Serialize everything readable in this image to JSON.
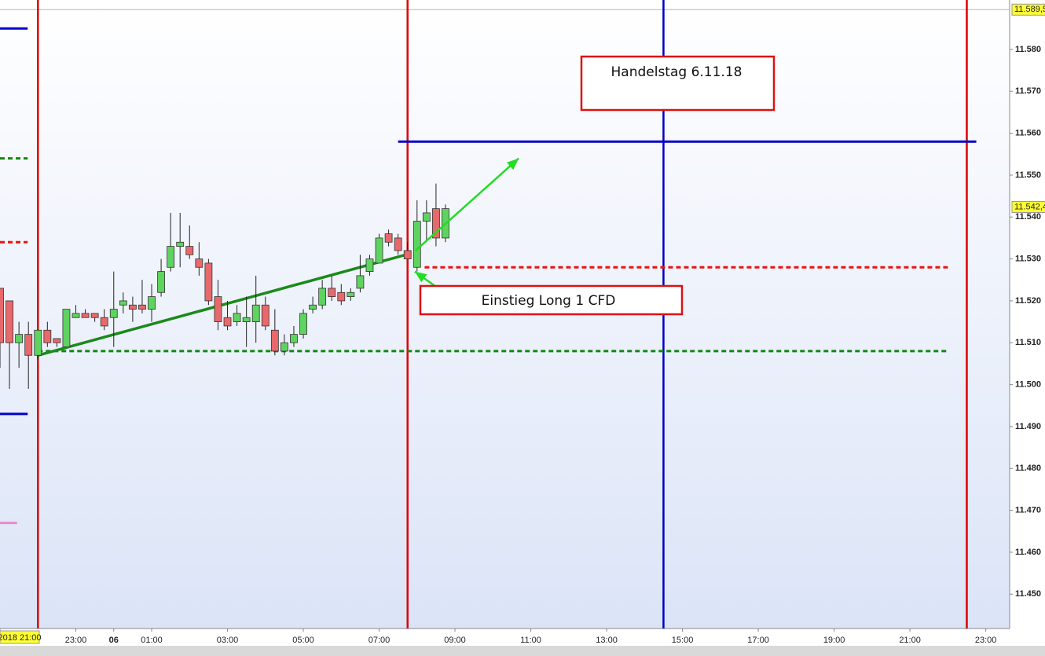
{
  "chart_data": {
    "type": "candlestick",
    "x": [
      0,
      0.25,
      0.5,
      0.75,
      1,
      1.25,
      1.5,
      1.75,
      2,
      2.25,
      2.5,
      2.75,
      3,
      3.25,
      3.5,
      3.75,
      4,
      4.25,
      4.5,
      4.75,
      5,
      5.25,
      5.5,
      5.75,
      6,
      6.25,
      6.5,
      6.75,
      7,
      7.25,
      7.5,
      7.75,
      8,
      8.25,
      8.5,
      8.75,
      9,
      9.25,
      9.5,
      9.75,
      10,
      10.25,
      10.5,
      10.75,
      11,
      11.25,
      11.5,
      11.75
    ],
    "open": [
      11.523,
      11.52,
      11.51,
      11.512,
      11.507,
      11.513,
      11.511,
      11.509,
      11.516,
      11.517,
      11.517,
      11.516,
      11.516,
      11.519,
      11.519,
      11.519,
      11.518,
      11.522,
      11.528,
      11.533,
      11.533,
      11.53,
      11.529,
      11.521,
      11.516,
      11.515,
      11.515,
      11.515,
      11.519,
      11.513,
      11.508,
      11.51,
      11.512,
      11.518,
      11.519,
      11.523,
      11.522,
      11.521,
      11.523,
      11.527,
      11.529,
      11.536,
      11.535,
      11.532,
      11.528,
      11.539,
      11.542,
      11.535
    ],
    "high": [
      11.523,
      11.52,
      11.515,
      11.515,
      11.513,
      11.515,
      11.511,
      11.518,
      11.519,
      11.518,
      11.517,
      11.518,
      11.527,
      11.522,
      11.521,
      11.525,
      11.524,
      11.53,
      11.541,
      11.541,
      11.538,
      11.534,
      11.53,
      11.525,
      11.52,
      11.519,
      11.521,
      11.526,
      11.521,
      11.518,
      11.512,
      11.514,
      11.518,
      11.521,
      11.525,
      11.526,
      11.524,
      11.523,
      11.531,
      11.531,
      11.536,
      11.537,
      11.536,
      11.534,
      11.544,
      11.544,
      11.548,
      11.543
    ],
    "low": [
      11.504,
      11.499,
      11.504,
      11.499,
      11.506,
      11.509,
      11.509,
      11.509,
      11.516,
      11.516,
      11.515,
      11.513,
      11.509,
      11.517,
      11.515,
      11.517,
      11.515,
      11.521,
      11.527,
      11.528,
      11.53,
      11.526,
      11.519,
      11.513,
      11.513,
      11.514,
      11.509,
      11.51,
      11.513,
      11.507,
      11.507,
      11.509,
      11.511,
      11.517,
      11.518,
      11.52,
      11.519,
      11.52,
      11.522,
      11.526,
      11.529,
      11.533,
      11.531,
      11.53,
      11.527,
      11.534,
      11.533,
      11.534
    ],
    "close": [
      11.51,
      11.51,
      11.512,
      11.507,
      11.513,
      11.51,
      11.51,
      11.518,
      11.517,
      11.516,
      11.516,
      11.514,
      11.518,
      11.52,
      11.518,
      11.518,
      11.521,
      11.527,
      11.533,
      11.534,
      11.531,
      11.528,
      11.52,
      11.515,
      11.514,
      11.517,
      11.516,
      11.519,
      11.514,
      11.508,
      11.51,
      11.512,
      11.517,
      11.519,
      11.523,
      11.521,
      11.52,
      11.522,
      11.526,
      11.53,
      11.535,
      11.534,
      11.532,
      11.53,
      11.539,
      11.541,
      11.535,
      11.542
    ],
    "up_color": "#5fd35f",
    "down_color": "#e8696b",
    "xlim": [
      0,
      26.63
    ],
    "ylim": [
      11.4418,
      11.5918
    ],
    "xticks": [
      {
        "value": 0,
        "label": "2018 21:00"
      },
      {
        "value": 2,
        "label": "23:00"
      },
      {
        "value": 3,
        "label": "06"
      },
      {
        "value": 4,
        "label": "01:00"
      },
      {
        "value": 6,
        "label": "03:00"
      },
      {
        "value": 8,
        "label": "05:00"
      },
      {
        "value": 10,
        "label": "07:00"
      },
      {
        "value": 12,
        "label": "09:00"
      },
      {
        "value": 14,
        "label": "11:00"
      },
      {
        "value": 16,
        "label": "13:00"
      },
      {
        "value": 18,
        "label": "15:00"
      },
      {
        "value": 20,
        "label": "17:00"
      },
      {
        "value": 22,
        "label": "19:00"
      },
      {
        "value": 24,
        "label": "21:00"
      },
      {
        "value": 26,
        "label": "23:00"
      }
    ],
    "yticks": [
      {
        "value": 11.58,
        "label": "11.580"
      },
      {
        "value": 11.57,
        "label": "11.570"
      },
      {
        "value": 11.56,
        "label": "11.560"
      },
      {
        "value": 11.55,
        "label": "11.550"
      },
      {
        "value": 11.54,
        "label": "11.540"
      },
      {
        "value": 11.53,
        "label": "11.530"
      },
      {
        "value": 11.52,
        "label": "11.520"
      },
      {
        "value": 11.51,
        "label": "11.510"
      },
      {
        "value": 11.5,
        "label": "11.500"
      },
      {
        "value": 11.49,
        "label": "11.490"
      },
      {
        "value": 11.48,
        "label": "11.480"
      },
      {
        "value": 11.47,
        "label": "11.470"
      },
      {
        "value": 11.46,
        "label": "11.460"
      },
      {
        "value": 11.45,
        "label": "11.450"
      }
    ],
    "price_markers": [
      {
        "value": 11.5895,
        "label": "11.589,5"
      },
      {
        "value": 11.5424,
        "label": "11.542,4"
      }
    ],
    "hlines": [
      {
        "y": 11.558,
        "x": [
          10.5,
          25.75
        ],
        "color": "#0000cc",
        "dash": false
      },
      {
        "y": 11.528,
        "x": [
          11.2,
          25.0
        ],
        "color": "#ee1111",
        "dash": true
      },
      {
        "y": 11.508,
        "x": [
          1.0,
          25.0
        ],
        "color": "#118811",
        "dash": true
      },
      {
        "y": 11.585,
        "x": [
          0,
          0.73
        ],
        "color": "#0000cc",
        "dash": false
      },
      {
        "y": 11.493,
        "x": [
          0,
          0.73
        ],
        "color": "#0000cc",
        "dash": false
      },
      {
        "y": 11.554,
        "x": [
          0,
          0.73
        ],
        "color": "#118811",
        "dash": true
      },
      {
        "y": 11.534,
        "x": [
          0,
          0.73
        ],
        "color": "#ee1111",
        "dash": true
      },
      {
        "y": 11.467,
        "x": [
          0,
          0.45
        ],
        "color": "#ee88cc",
        "dash": false
      }
    ],
    "vlines": [
      {
        "x": 1.0,
        "color": "#dd0000"
      },
      {
        "x": 10.75,
        "color": "#dd0000"
      },
      {
        "x": 17.5,
        "color": "#0000cc"
      },
      {
        "x": 25.5,
        "color": "#dd0000"
      }
    ],
    "trendline": {
      "x": [
        1.0,
        10.7
      ],
      "y": [
        11.507,
        11.531
      ],
      "color": "#1a8a1a"
    },
    "arrows": [
      {
        "x": [
          10.96,
          13.68
        ],
        "y": [
          11.532,
          11.554
        ],
        "color": "#22dd22"
      },
      {
        "x": [
          11.71,
          10.94
        ],
        "y": [
          11.522,
          11.527
        ],
        "color": "#22dd22"
      }
    ],
    "annotations": [
      "Handelstag 6.11.18",
      "Einstieg Long 1 CFD"
    ]
  }
}
